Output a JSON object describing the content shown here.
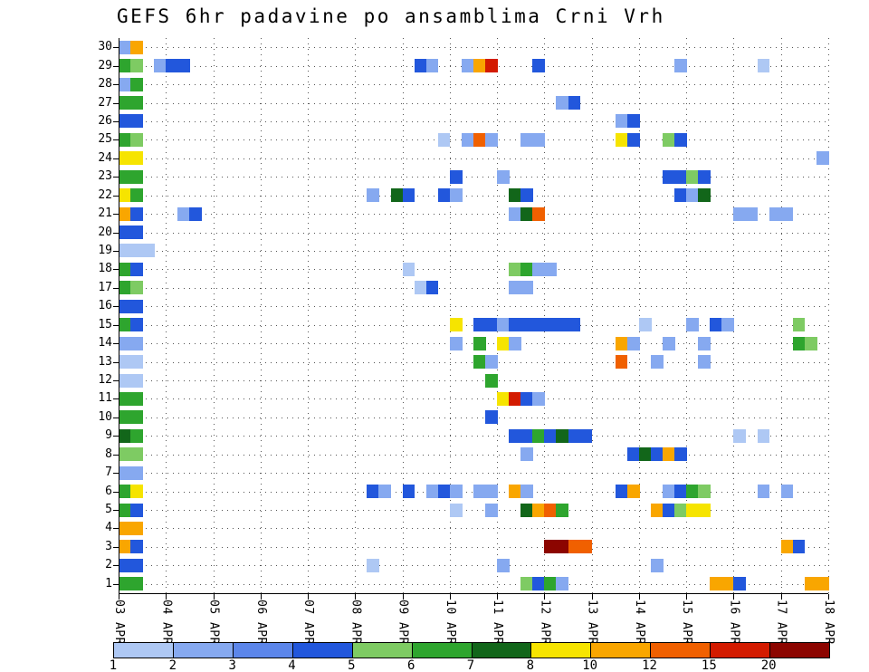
{
  "chart_data": {
    "type": "heatmap",
    "title": "GEFS 6hr padavine po ansamblima Crni Vrh",
    "x_axis": {
      "labels": [
        "03 APR",
        "04 APR",
        "05 APR",
        "06 APR",
        "07 APR",
        "08 APR",
        "09 APR",
        "10 APR",
        "11 APR",
        "12 APR",
        "13 APR",
        "14 APR",
        "15 APR",
        "16 APR",
        "17 APR",
        "18 APR"
      ],
      "steps_per_day": 4,
      "total_steps": 60
    },
    "y_axis": {
      "min": 1,
      "max": 30,
      "ticks": [
        "30",
        "29",
        "28",
        "27",
        "26",
        "25",
        "24",
        "23",
        "22",
        "21",
        "20",
        "19",
        "18",
        "17",
        "16",
        "15",
        "14",
        "13",
        "12",
        "11",
        "10",
        "9",
        "8",
        "7",
        "6",
        "5",
        "4",
        "3",
        "2",
        "1"
      ]
    },
    "legend": {
      "labels": [
        "1",
        "2",
        "3",
        "4",
        "5",
        "6",
        "7",
        "8",
        "10",
        "12",
        "15",
        "20"
      ],
      "levels": [
        1,
        2,
        3,
        4,
        5,
        6,
        7,
        8,
        10,
        12,
        15,
        20
      ],
      "colors": [
        "#aec8f4",
        "#86a9f0",
        "#5c86ea",
        "#2257dc",
        "#7ecb63",
        "#2ea52e",
        "#12661a",
        "#f6e400",
        "#f9a600",
        "#f06000",
        "#d31b00",
        "#8c0500"
      ]
    },
    "grid": {
      "horizontal": "dotted per member",
      "vertical": "dotted per day"
    },
    "cells": [
      [
        30,
        0,
        2
      ],
      [
        30,
        1,
        10
      ],
      [
        29,
        0,
        6
      ],
      [
        29,
        1,
        5
      ],
      [
        29,
        3,
        2
      ],
      [
        29,
        4,
        4
      ],
      [
        29,
        5,
        4
      ],
      [
        29,
        25,
        4
      ],
      [
        29,
        26,
        2
      ],
      [
        29,
        29,
        2
      ],
      [
        29,
        30,
        10
      ],
      [
        29,
        31,
        15
      ],
      [
        29,
        35,
        4
      ],
      [
        29,
        47,
        2
      ],
      [
        29,
        54,
        1
      ],
      [
        28,
        0,
        2
      ],
      [
        28,
        1,
        6
      ],
      [
        27,
        0,
        6
      ],
      [
        27,
        1,
        6
      ],
      [
        27,
        37,
        2
      ],
      [
        27,
        38,
        4
      ],
      [
        26,
        0,
        4
      ],
      [
        26,
        1,
        4
      ],
      [
        26,
        42,
        2
      ],
      [
        26,
        43,
        4
      ],
      [
        25,
        0,
        6
      ],
      [
        25,
        1,
        5
      ],
      [
        25,
        27,
        1
      ],
      [
        25,
        29,
        2
      ],
      [
        25,
        30,
        12
      ],
      [
        25,
        31,
        2
      ],
      [
        25,
        34,
        2
      ],
      [
        25,
        35,
        2
      ],
      [
        25,
        42,
        8
      ],
      [
        25,
        43,
        4
      ],
      [
        25,
        46,
        5
      ],
      [
        25,
        47,
        4
      ],
      [
        24,
        0,
        8
      ],
      [
        24,
        1,
        8
      ],
      [
        24,
        59,
        2
      ],
      [
        23,
        0,
        6
      ],
      [
        23,
        1,
        6
      ],
      [
        23,
        28,
        4
      ],
      [
        23,
        32,
        2
      ],
      [
        23,
        46,
        4
      ],
      [
        23,
        47,
        4
      ],
      [
        23,
        48,
        5
      ],
      [
        23,
        49,
        4
      ],
      [
        22,
        0,
        8
      ],
      [
        22,
        1,
        6
      ],
      [
        22,
        21,
        2
      ],
      [
        22,
        23,
        7
      ],
      [
        22,
        24,
        4
      ],
      [
        22,
        27,
        4
      ],
      [
        22,
        28,
        2
      ],
      [
        22,
        33,
        7
      ],
      [
        22,
        34,
        4
      ],
      [
        22,
        47,
        4
      ],
      [
        22,
        48,
        2
      ],
      [
        22,
        49,
        7
      ],
      [
        21,
        0,
        10
      ],
      [
        21,
        1,
        4
      ],
      [
        21,
        5,
        2
      ],
      [
        21,
        6,
        4
      ],
      [
        21,
        33,
        2
      ],
      [
        21,
        34,
        7
      ],
      [
        21,
        35,
        12
      ],
      [
        21,
        52,
        2
      ],
      [
        21,
        53,
        2
      ],
      [
        21,
        55,
        2
      ],
      [
        21,
        56,
        2
      ],
      [
        20,
        0,
        4
      ],
      [
        20,
        1,
        4
      ],
      [
        19,
        0,
        1
      ],
      [
        19,
        1,
        1
      ],
      [
        19,
        2,
        1
      ],
      [
        18,
        0,
        6
      ],
      [
        18,
        1,
        4
      ],
      [
        18,
        24,
        1
      ],
      [
        18,
        33,
        5
      ],
      [
        18,
        34,
        6
      ],
      [
        18,
        35,
        2
      ],
      [
        18,
        36,
        2
      ],
      [
        17,
        0,
        6
      ],
      [
        17,
        1,
        5
      ],
      [
        17,
        25,
        1
      ],
      [
        17,
        26,
        4
      ],
      [
        17,
        33,
        2
      ],
      [
        17,
        34,
        2
      ],
      [
        16,
        0,
        4
      ],
      [
        16,
        1,
        4
      ],
      [
        15,
        0,
        6
      ],
      [
        15,
        1,
        4
      ],
      [
        15,
        28,
        8
      ],
      [
        15,
        30,
        4
      ],
      [
        15,
        31,
        4
      ],
      [
        15,
        32,
        2
      ],
      [
        15,
        33,
        4
      ],
      [
        15,
        34,
        4
      ],
      [
        15,
        35,
        4
      ],
      [
        15,
        36,
        4
      ],
      [
        15,
        37,
        4
      ],
      [
        15,
        38,
        4
      ],
      [
        15,
        44,
        1
      ],
      [
        15,
        48,
        2
      ],
      [
        15,
        50,
        4
      ],
      [
        15,
        51,
        2
      ],
      [
        15,
        57,
        5
      ],
      [
        14,
        0,
        2
      ],
      [
        14,
        1,
        2
      ],
      [
        14,
        28,
        2
      ],
      [
        14,
        30,
        6
      ],
      [
        14,
        32,
        8
      ],
      [
        14,
        33,
        2
      ],
      [
        14,
        42,
        10
      ],
      [
        14,
        43,
        2
      ],
      [
        14,
        46,
        2
      ],
      [
        14,
        49,
        2
      ],
      [
        14,
        57,
        6
      ],
      [
        14,
        58,
        5
      ],
      [
        13,
        0,
        1
      ],
      [
        13,
        1,
        1
      ],
      [
        13,
        30,
        6
      ],
      [
        13,
        31,
        2
      ],
      [
        13,
        42,
        12
      ],
      [
        13,
        45,
        2
      ],
      [
        13,
        49,
        2
      ],
      [
        12,
        0,
        1
      ],
      [
        12,
        1,
        1
      ],
      [
        12,
        31,
        6
      ],
      [
        11,
        0,
        6
      ],
      [
        11,
        1,
        6
      ],
      [
        11,
        32,
        8
      ],
      [
        11,
        33,
        15
      ],
      [
        11,
        34,
        4
      ],
      [
        11,
        35,
        2
      ],
      [
        10,
        0,
        6
      ],
      [
        10,
        1,
        6
      ],
      [
        10,
        31,
        4
      ],
      [
        9,
        0,
        7
      ],
      [
        9,
        1,
        6
      ],
      [
        9,
        33,
        4
      ],
      [
        9,
        34,
        4
      ],
      [
        9,
        35,
        6
      ],
      [
        9,
        36,
        4
      ],
      [
        9,
        37,
        7
      ],
      [
        9,
        38,
        4
      ],
      [
        9,
        39,
        4
      ],
      [
        9,
        52,
        1
      ],
      [
        9,
        54,
        1
      ],
      [
        8,
        0,
        5
      ],
      [
        8,
        1,
        5
      ],
      [
        8,
        34,
        2
      ],
      [
        8,
        43,
        4
      ],
      [
        8,
        44,
        7
      ],
      [
        8,
        45,
        4
      ],
      [
        8,
        46,
        10
      ],
      [
        8,
        47,
        4
      ],
      [
        7,
        0,
        2
      ],
      [
        7,
        1,
        2
      ],
      [
        6,
        0,
        6
      ],
      [
        6,
        1,
        8
      ],
      [
        6,
        21,
        4
      ],
      [
        6,
        22,
        2
      ],
      [
        6,
        24,
        4
      ],
      [
        6,
        26,
        2
      ],
      [
        6,
        27,
        4
      ],
      [
        6,
        28,
        2
      ],
      [
        6,
        30,
        2
      ],
      [
        6,
        31,
        2
      ],
      [
        6,
        33,
        10
      ],
      [
        6,
        34,
        2
      ],
      [
        6,
        42,
        4
      ],
      [
        6,
        43,
        10
      ],
      [
        6,
        46,
        2
      ],
      [
        6,
        47,
        4
      ],
      [
        6,
        48,
        6
      ],
      [
        6,
        49,
        5
      ],
      [
        6,
        54,
        2
      ],
      [
        6,
        56,
        2
      ],
      [
        5,
        0,
        6
      ],
      [
        5,
        1,
        4
      ],
      [
        5,
        28,
        1
      ],
      [
        5,
        31,
        2
      ],
      [
        5,
        34,
        7
      ],
      [
        5,
        35,
        10
      ],
      [
        5,
        36,
        12
      ],
      [
        5,
        37,
        6
      ],
      [
        5,
        45,
        10
      ],
      [
        5,
        46,
        4
      ],
      [
        5,
        47,
        5
      ],
      [
        5,
        48,
        8
      ],
      [
        5,
        49,
        8
      ],
      [
        4,
        0,
        10
      ],
      [
        4,
        1,
        10
      ],
      [
        3,
        0,
        10
      ],
      [
        3,
        1,
        4
      ],
      [
        3,
        36,
        20
      ],
      [
        3,
        37,
        20
      ],
      [
        3,
        38,
        12
      ],
      [
        3,
        39,
        12
      ],
      [
        3,
        56,
        10
      ],
      [
        3,
        57,
        4
      ],
      [
        2,
        0,
        4
      ],
      [
        2,
        1,
        4
      ],
      [
        2,
        21,
        1
      ],
      [
        2,
        32,
        2
      ],
      [
        2,
        45,
        2
      ],
      [
        1,
        0,
        6
      ],
      [
        1,
        1,
        6
      ],
      [
        1,
        34,
        5
      ],
      [
        1,
        35,
        4
      ],
      [
        1,
        36,
        6
      ],
      [
        1,
        37,
        2
      ],
      [
        1,
        50,
        10
      ],
      [
        1,
        51,
        10
      ],
      [
        1,
        52,
        4
      ],
      [
        1,
        58,
        10
      ],
      [
        1,
        59,
        10
      ]
    ]
  }
}
